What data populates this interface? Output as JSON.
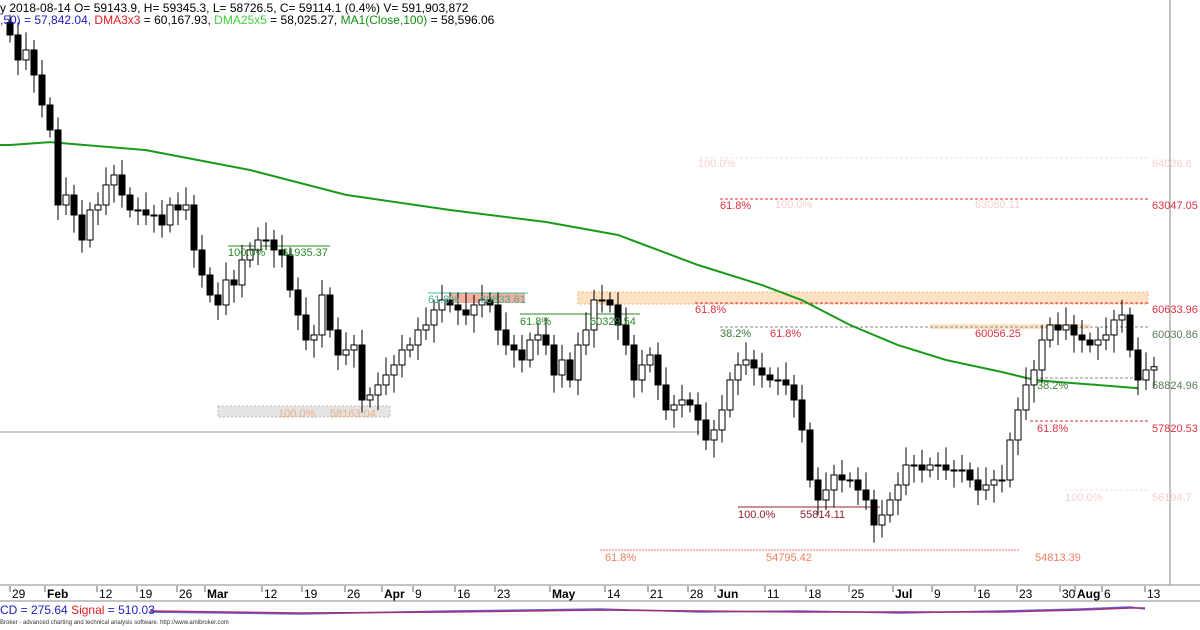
{
  "header": {
    "line1": "y 2018-08-14 O= 59143.9, H= 59345.3, L= 58726.5, C= 59114.1 (0.4%) V= 591,903,872",
    "ind1": ",50) = 57,842.04, ",
    "ind2_name": "DMA3x3",
    "ind2_val": " = 60,167.93, ",
    "ind3_name": "DMA25x5",
    "ind3_val": " = 58,025.27, ",
    "ind4_name": "MA1(Close,100)",
    "ind4_val": " = 58,596.06"
  },
  "macd": {
    "label": "CD = 275.64",
    "signal_name": "Signal",
    "signal_val": " = 510.03"
  },
  "footer": "Broker - advanced charting and technical analysis software. http://www.amibroker.com",
  "colors": {
    "up": "#ffffff",
    "down": "#000000",
    "ma": "#1a9a1a",
    "fib_red": "#e03040",
    "fib_green": "#2a8a2a"
  },
  "chart_data": {
    "type": "candlestick",
    "title": "2018-08-14 O= 59143.9, H= 59345.3, L= 58726.5, C= 59114.1",
    "ylim": [
      53911,
      67142
    ],
    "closes": [
      67024,
      66428,
      66666,
      66070,
      65355,
      64759,
      62971,
      63209,
      62732,
      62136,
      62852,
      62971,
      63448,
      63686,
      63209,
      62852,
      62852,
      62732,
      62732,
      62494,
      62971,
      62852,
      62971,
      61898,
      61302,
      60825,
      60587,
      61183,
      61064,
      61660,
      61898,
      62136,
      62136,
      61898,
      61779,
      60944,
      60348,
      59752,
      59872,
      60825,
      59991,
      59395,
      59514,
      59633,
      58322,
      58441,
      58680,
      58918,
      59157,
      59514,
      59633,
      59991,
      60110,
      60468,
      60706,
      60587,
      60468,
      60348,
      60587,
      60706,
      60587,
      59991,
      59633,
      59514,
      59276,
      59752,
      59872,
      59633,
      58918,
      59276,
      58799,
      59633,
      59991,
      60706,
      60706,
      60587,
      60110,
      59633,
      58799,
      59157,
      59395,
      58680,
      58084,
      58203,
      58322,
      58203,
      57845,
      57368,
      57607,
      58084,
      58799,
      59157,
      59276,
      59085,
      58918,
      58799,
      58799,
      58680,
      58322,
      57607,
      56415,
      55938,
      56176,
      56534,
      56415,
      56415,
      56176,
      55938,
      55342,
      55580,
      55938,
      56295,
      56772,
      56772,
      56653,
      56772,
      56772,
      56653,
      56653,
      56653,
      56415,
      56176,
      56295,
      56415,
      56415,
      57368,
      58084,
      58680,
      59037,
      59752,
      60110,
      59991,
      60110,
      59872,
      59752,
      59633,
      59752,
      59872,
      60229,
      60348,
      59514,
      58799,
      59037,
      59114
    ],
    "ma100": [
      {
        "i": 0,
        "v": 64400
      },
      {
        "i": 5,
        "v": 64470
      },
      {
        "i": 17,
        "v": 64280
      },
      {
        "i": 30,
        "v": 63805
      },
      {
        "i": 42,
        "v": 63210
      },
      {
        "i": 55,
        "v": 62850
      },
      {
        "i": 67,
        "v": 62565
      },
      {
        "i": 76,
        "v": 62255
      },
      {
        "i": 86,
        "v": 61540
      },
      {
        "i": 94,
        "v": 61060
      },
      {
        "i": 99,
        "v": 60700
      },
      {
        "i": 105,
        "v": 60110
      },
      {
        "i": 111,
        "v": 59630
      },
      {
        "i": 117,
        "v": 59275
      },
      {
        "i": 124,
        "v": 58990
      },
      {
        "i": 128,
        "v": 58800
      },
      {
        "i": 131,
        "v": 58750
      },
      {
        "i": 136,
        "v": 58680
      },
      {
        "i": 141,
        "v": 58600
      }
    ],
    "xticks": [
      {
        "l": "29",
        "b": 0
      },
      {
        "l": "Feb",
        "b": 1
      },
      {
        "l": "12",
        "b": 0
      },
      {
        "l": "19",
        "b": 0
      },
      {
        "l": "26",
        "b": 0
      },
      {
        "l": "Mar",
        "b": 1
      },
      {
        "l": "12",
        "b": 0
      },
      {
        "l": "19",
        "b": 0
      },
      {
        "l": "26",
        "b": 0
      },
      {
        "l": "Apr",
        "b": 1
      },
      {
        "l": "9",
        "b": 0
      },
      {
        "l": "16",
        "b": 0
      },
      {
        "l": "23",
        "b": 0
      },
      {
        "l": "May",
        "b": 1
      },
      {
        "l": "14",
        "b": 0
      },
      {
        "l": "21",
        "b": 0
      },
      {
        "l": "28",
        "b": 0
      },
      {
        "l": "Jun",
        "b": 1
      },
      {
        "l": "11",
        "b": 0
      },
      {
        "l": "18",
        "b": 0
      },
      {
        "l": "25",
        "b": 0
      },
      {
        "l": "Jul",
        "b": 1
      },
      {
        "l": "9",
        "b": 0
      },
      {
        "l": "16",
        "b": 0
      },
      {
        "l": "23",
        "b": 0
      },
      {
        "l": "30",
        "b": 0
      },
      {
        "l": "Aug",
        "b": 1
      },
      {
        "l": "6",
        "b": 0
      },
      {
        "l": "13",
        "b": 0
      }
    ],
    "annotations": [
      "100.0%",
      "61935.37",
      "61.8%",
      "60833.61",
      "61.8%",
      "60329.54",
      "61.8%",
      "60633.96",
      "38.2%",
      "61.8%",
      "60056.25",
      "60030.86",
      "100.0%",
      "58163.04",
      "38.2%",
      "58824.96",
      "61.8%",
      "57820.53",
      "100.0%",
      "55814.11",
      "61.8%",
      "54795.42",
      "54813.39",
      "100.0%",
      "64036.6",
      "100.0%",
      "63080.11",
      "61.8%",
      "63047.05",
      "100.0%",
      "56194.7"
    ]
  }
}
